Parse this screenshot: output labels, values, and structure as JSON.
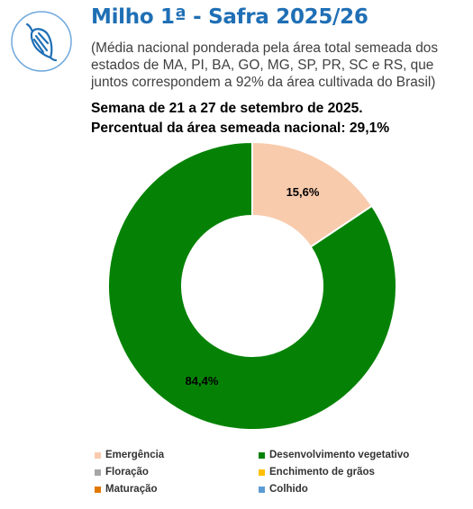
{
  "header": {
    "title": "Milho 1ª - Safra 2025/26",
    "subtitle": "(Média nacional ponderada pela área total semeada dos estados de MA, PI, BA, GO, MG, SP, PR, SC e RS, que juntos correspondem a 92% da área cultivada do Brasil)",
    "week": "Semana de 21 a 27 de setembro de 2025.",
    "national_percent": "Percentual da área semeada nacional: 29,1%"
  },
  "logo": {
    "icon": "corn-icon",
    "color": "#1f6fb5"
  },
  "chart_data": {
    "type": "pie",
    "style": "donut",
    "start": "top, clockwise",
    "legend_position": "bottom",
    "slices": [
      {
        "name": "Emergência",
        "value": 15.6,
        "label": "15,6%",
        "color": "#f8cbad"
      },
      {
        "name": "Desenvolvimento vegetativo",
        "value": 84.4,
        "label": "84,4%",
        "color": "#058205"
      }
    ],
    "legend": [
      {
        "name": "Emergência",
        "color": "#f8cbad"
      },
      {
        "name": "Desenvolvimento vegetativo",
        "color": "#058205"
      },
      {
        "name": "Floração",
        "color": "#a6a6a6"
      },
      {
        "name": "Enchimento de grãos",
        "color": "#ffc000"
      },
      {
        "name": "Maturação",
        "color": "#e07800"
      },
      {
        "name": "Colhido",
        "color": "#5b9bd5"
      }
    ]
  }
}
